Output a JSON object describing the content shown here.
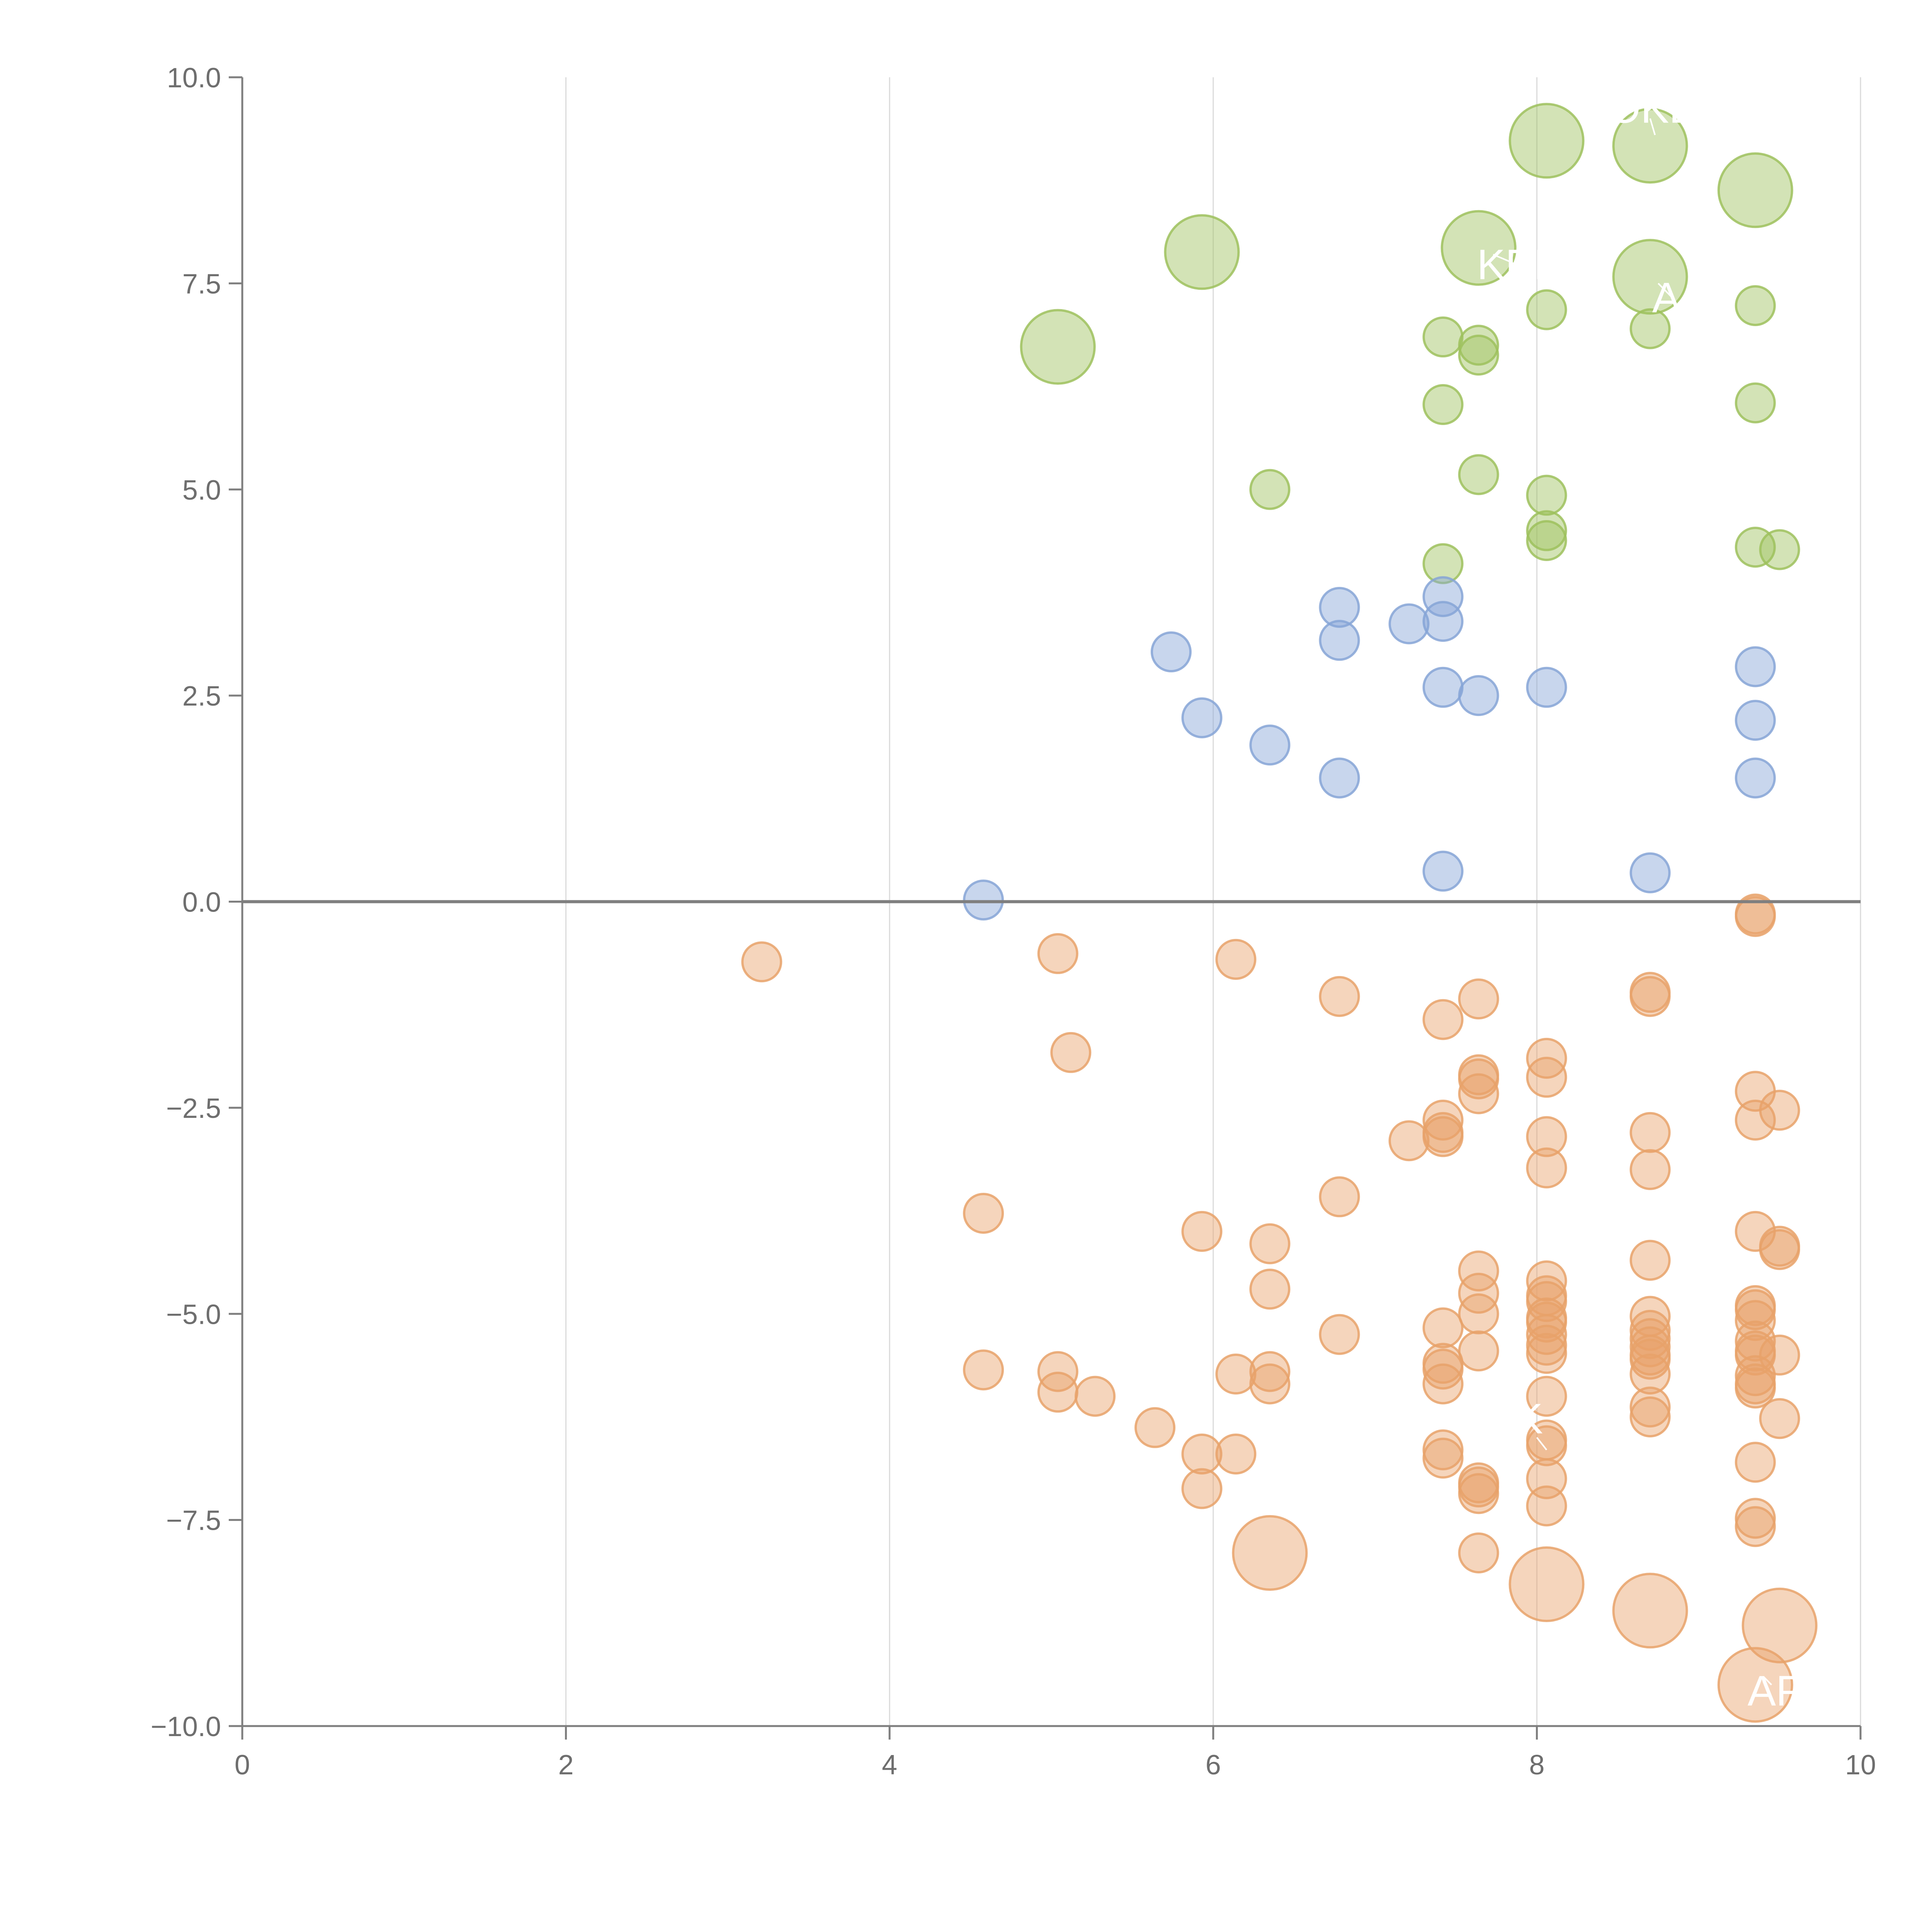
{
  "chart_data": {
    "type": "scatter",
    "title": "",
    "xlabel": "",
    "ylabel": "",
    "xlim": [
      0,
      10
    ],
    "ylim": [
      -10,
      10
    ],
    "grid": "vertical lines at x ticks",
    "reference_line": {
      "y": 0
    },
    "x_ticks": [
      "0",
      "2",
      "4",
      "6",
      "8",
      "10"
    ],
    "y_ticks": [
      "−10.0",
      "−7.5",
      "−5.0",
      "−2.5",
      "0.0",
      "2.5",
      "5.0",
      "7.5",
      "10.0"
    ],
    "x_tick_values": [
      0,
      2,
      4,
      6,
      8,
      10
    ],
    "y_tick_values": [
      -10,
      -7.5,
      -5,
      -2.5,
      0,
      2.5,
      5,
      7.5,
      10
    ],
    "series": [
      {
        "name": "green",
        "color": "#9dc15d",
        "points": [
          {
            "x": 8.06,
            "y": 9.23,
            "s": "large"
          },
          {
            "x": 8.7,
            "y": 9.17,
            "s": "large"
          },
          {
            "x": 9.35,
            "y": 8.63,
            "s": "large"
          },
          {
            "x": 5.93,
            "y": 7.88,
            "s": "large"
          },
          {
            "x": 7.64,
            "y": 7.93,
            "s": "large"
          },
          {
            "x": 8.7,
            "y": 7.58,
            "s": "large"
          },
          {
            "x": 5.04,
            "y": 6.73,
            "s": "large"
          },
          {
            "x": 8.06,
            "y": 7.18,
            "s": "small"
          },
          {
            "x": 9.35,
            "y": 7.23,
            "s": "small"
          },
          {
            "x": 7.42,
            "y": 6.85,
            "s": "small"
          },
          {
            "x": 7.64,
            "y": 6.75,
            "s": "small"
          },
          {
            "x": 7.64,
            "y": 6.63,
            "s": "small"
          },
          {
            "x": 8.7,
            "y": 6.95,
            "s": "small"
          },
          {
            "x": 7.42,
            "y": 6.03,
            "s": "small"
          },
          {
            "x": 9.35,
            "y": 6.05,
            "s": "small"
          },
          {
            "x": 7.64,
            "y": 5.18,
            "s": "small"
          },
          {
            "x": 6.35,
            "y": 5.0,
            "s": "small"
          },
          {
            "x": 8.06,
            "y": 4.93,
            "s": "small"
          },
          {
            "x": 8.06,
            "y": 4.5,
            "s": "small"
          },
          {
            "x": 8.06,
            "y": 4.38,
            "s": "small"
          },
          {
            "x": 9.35,
            "y": 4.3,
            "s": "small"
          },
          {
            "x": 9.5,
            "y": 4.27,
            "s": "small"
          },
          {
            "x": 7.42,
            "y": 4.1,
            "s": "small"
          }
        ]
      },
      {
        "name": "blue",
        "color": "#86a5d6",
        "points": [
          {
            "x": 7.42,
            "y": 3.7,
            "s": "small"
          },
          {
            "x": 6.78,
            "y": 3.57,
            "s": "small"
          },
          {
            "x": 7.42,
            "y": 3.4,
            "s": "small"
          },
          {
            "x": 7.21,
            "y": 3.37,
            "s": "small"
          },
          {
            "x": 6.78,
            "y": 3.17,
            "s": "small"
          },
          {
            "x": 5.74,
            "y": 3.03,
            "s": "small"
          },
          {
            "x": 9.35,
            "y": 2.85,
            "s": "small"
          },
          {
            "x": 7.42,
            "y": 2.6,
            "s": "small"
          },
          {
            "x": 8.06,
            "y": 2.6,
            "s": "small"
          },
          {
            "x": 7.64,
            "y": 2.5,
            "s": "small"
          },
          {
            "x": 5.93,
            "y": 2.23,
            "s": "small"
          },
          {
            "x": 9.35,
            "y": 2.2,
            "s": "small"
          },
          {
            "x": 6.35,
            "y": 1.9,
            "s": "small"
          },
          {
            "x": 6.78,
            "y": 1.5,
            "s": "small"
          },
          {
            "x": 9.35,
            "y": 1.5,
            "s": "small"
          },
          {
            "x": 7.42,
            "y": 0.37,
            "s": "small"
          },
          {
            "x": 8.7,
            "y": 0.35,
            "s": "small"
          },
          {
            "x": 4.58,
            "y": 0.02,
            "s": "small"
          }
        ]
      },
      {
        "name": "orange",
        "color": "#e8a26a",
        "points": [
          {
            "x": 9.35,
            "y": -0.15,
            "s": "small"
          },
          {
            "x": 9.35,
            "y": -0.18,
            "s": "small"
          },
          {
            "x": 3.21,
            "y": -0.73,
            "s": "small"
          },
          {
            "x": 5.04,
            "y": -0.63,
            "s": "small"
          },
          {
            "x": 6.14,
            "y": -0.7,
            "s": "small"
          },
          {
            "x": 6.78,
            "y": -1.15,
            "s": "small"
          },
          {
            "x": 7.64,
            "y": -1.18,
            "s": "small"
          },
          {
            "x": 8.7,
            "y": -1.1,
            "s": "small"
          },
          {
            "x": 8.7,
            "y": -1.15,
            "s": "small"
          },
          {
            "x": 7.42,
            "y": -1.43,
            "s": "small"
          },
          {
            "x": 5.12,
            "y": -1.83,
            "s": "small"
          },
          {
            "x": 8.06,
            "y": -1.9,
            "s": "small"
          },
          {
            "x": 7.64,
            "y": -2.1,
            "s": "small"
          },
          {
            "x": 7.64,
            "y": -2.15,
            "s": "small"
          },
          {
            "x": 8.06,
            "y": -2.13,
            "s": "small"
          },
          {
            "x": 7.64,
            "y": -2.33,
            "s": "small"
          },
          {
            "x": 9.35,
            "y": -2.3,
            "s": "small"
          },
          {
            "x": 9.5,
            "y": -2.53,
            "s": "small"
          },
          {
            "x": 9.35,
            "y": -2.65,
            "s": "small"
          },
          {
            "x": 7.42,
            "y": -2.65,
            "s": "small"
          },
          {
            "x": 7.42,
            "y": -2.8,
            "s": "small"
          },
          {
            "x": 7.42,
            "y": -2.85,
            "s": "small"
          },
          {
            "x": 8.06,
            "y": -2.85,
            "s": "small"
          },
          {
            "x": 8.7,
            "y": -2.8,
            "s": "small"
          },
          {
            "x": 7.21,
            "y": -2.9,
            "s": "small"
          },
          {
            "x": 8.06,
            "y": -3.23,
            "s": "small"
          },
          {
            "x": 8.7,
            "y": -3.25,
            "s": "small"
          },
          {
            "x": 6.78,
            "y": -3.58,
            "s": "small"
          },
          {
            "x": 4.58,
            "y": -3.78,
            "s": "small"
          },
          {
            "x": 5.93,
            "y": -4.0,
            "s": "small"
          },
          {
            "x": 9.35,
            "y": -4.0,
            "s": "small"
          },
          {
            "x": 6.35,
            "y": -4.15,
            "s": "small"
          },
          {
            "x": 9.5,
            "y": -4.18,
            "s": "small"
          },
          {
            "x": 9.5,
            "y": -4.22,
            "s": "small"
          },
          {
            "x": 8.7,
            "y": -4.35,
            "s": "small"
          },
          {
            "x": 7.64,
            "y": -4.48,
            "s": "small"
          },
          {
            "x": 8.06,
            "y": -4.6,
            "s": "small"
          },
          {
            "x": 6.35,
            "y": -4.7,
            "s": "small"
          },
          {
            "x": 7.64,
            "y": -4.75,
            "s": "small"
          },
          {
            "x": 8.06,
            "y": -4.78,
            "s": "small"
          },
          {
            "x": 8.06,
            "y": -4.85,
            "s": "small"
          },
          {
            "x": 9.35,
            "y": -4.9,
            "s": "small"
          },
          {
            "x": 9.35,
            "y": -4.95,
            "s": "small"
          },
          {
            "x": 7.64,
            "y": -5.0,
            "s": "small"
          },
          {
            "x": 8.7,
            "y": -5.03,
            "s": "small"
          },
          {
            "x": 8.06,
            "y": -5.05,
            "s": "small"
          },
          {
            "x": 9.35,
            "y": -5.08,
            "s": "small"
          },
          {
            "x": 8.06,
            "y": -5.1,
            "s": "small"
          },
          {
            "x": 7.42,
            "y": -5.17,
            "s": "small"
          },
          {
            "x": 8.7,
            "y": -5.2,
            "s": "small"
          },
          {
            "x": 6.78,
            "y": -5.25,
            "s": "small"
          },
          {
            "x": 8.06,
            "y": -5.25,
            "s": "small"
          },
          {
            "x": 8.7,
            "y": -5.3,
            "s": "small"
          },
          {
            "x": 9.35,
            "y": -5.33,
            "s": "small"
          },
          {
            "x": 8.06,
            "y": -5.38,
            "s": "small"
          },
          {
            "x": 8.7,
            "y": -5.4,
            "s": "small"
          },
          {
            "x": 9.35,
            "y": -5.45,
            "s": "small"
          },
          {
            "x": 8.06,
            "y": -5.48,
            "s": "small"
          },
          {
            "x": 7.64,
            "y": -5.45,
            "s": "small"
          },
          {
            "x": 8.7,
            "y": -5.5,
            "s": "small"
          },
          {
            "x": 9.35,
            "y": -5.5,
            "s": "small"
          },
          {
            "x": 9.5,
            "y": -5.5,
            "s": "small"
          },
          {
            "x": 8.7,
            "y": -5.55,
            "s": "small"
          },
          {
            "x": 7.42,
            "y": -5.6,
            "s": "small"
          },
          {
            "x": 4.58,
            "y": -5.68,
            "s": "small"
          },
          {
            "x": 5.04,
            "y": -5.7,
            "s": "small"
          },
          {
            "x": 7.42,
            "y": -5.67,
            "s": "small"
          },
          {
            "x": 6.35,
            "y": -5.7,
            "s": "small"
          },
          {
            "x": 6.14,
            "y": -5.73,
            "s": "small"
          },
          {
            "x": 8.7,
            "y": -5.73,
            "s": "small"
          },
          {
            "x": 9.35,
            "y": -5.75,
            "s": "small"
          },
          {
            "x": 7.42,
            "y": -5.85,
            "s": "small"
          },
          {
            "x": 6.35,
            "y": -5.85,
            "s": "small"
          },
          {
            "x": 9.35,
            "y": -5.85,
            "s": "small"
          },
          {
            "x": 9.35,
            "y": -5.9,
            "s": "small"
          },
          {
            "x": 5.04,
            "y": -5.95,
            "s": "small"
          },
          {
            "x": 5.27,
            "y": -6.0,
            "s": "small"
          },
          {
            "x": 8.06,
            "y": -6.0,
            "s": "small"
          },
          {
            "x": 8.7,
            "y": -6.13,
            "s": "small"
          },
          {
            "x": 8.7,
            "y": -6.25,
            "s": "small"
          },
          {
            "x": 9.5,
            "y": -6.27,
            "s": "small"
          },
          {
            "x": 5.64,
            "y": -6.38,
            "s": "small"
          },
          {
            "x": 8.06,
            "y": -6.53,
            "s": "small"
          },
          {
            "x": 8.06,
            "y": -6.6,
            "s": "small"
          },
          {
            "x": 7.42,
            "y": -6.65,
            "s": "small"
          },
          {
            "x": 5.93,
            "y": -6.7,
            "s": "small"
          },
          {
            "x": 6.14,
            "y": -6.7,
            "s": "small"
          },
          {
            "x": 7.42,
            "y": -6.75,
            "s": "small"
          },
          {
            "x": 9.35,
            "y": -6.8,
            "s": "small"
          },
          {
            "x": 8.06,
            "y": -7.0,
            "s": "small"
          },
          {
            "x": 7.64,
            "y": -7.05,
            "s": "small"
          },
          {
            "x": 7.64,
            "y": -7.1,
            "s": "small"
          },
          {
            "x": 5.93,
            "y": -7.12,
            "s": "small"
          },
          {
            "x": 7.64,
            "y": -7.18,
            "s": "small"
          },
          {
            "x": 8.06,
            "y": -7.33,
            "s": "small"
          },
          {
            "x": 9.35,
            "y": -7.48,
            "s": "small"
          },
          {
            "x": 9.35,
            "y": -7.58,
            "s": "small"
          },
          {
            "x": 7.64,
            "y": -7.9,
            "s": "small"
          },
          {
            "x": 6.35,
            "y": -7.9,
            "s": "large"
          },
          {
            "x": 8.06,
            "y": -8.28,
            "s": "large"
          },
          {
            "x": 8.7,
            "y": -8.6,
            "s": "large"
          },
          {
            "x": 9.5,
            "y": -8.78,
            "s": "large"
          },
          {
            "x": 9.35,
            "y": -9.5,
            "s": "large"
          }
        ]
      }
    ],
    "annotations": [
      {
        "text": "OKL",
        "x": 8.7,
        "y": 9.45,
        "lx1": 8.73,
        "ly1": 9.3,
        "lx2": 8.7,
        "ly2": 9.5
      },
      {
        "text": "KEN",
        "x": 7.9,
        "y": 7.55,
        "lx1": 7.73,
        "ly1": 7.85,
        "lx2": 7.85,
        "ly2": 7.75
      },
      {
        "text": "A",
        "x": 8.8,
        "y": 7.15,
        "lx1": 8.75,
        "ly1": 7.5,
        "lx2": 8.85,
        "ly2": 7.3
      },
      {
        "text": "K",
        "x": 7.95,
        "y": -6.45,
        "lx1": 8.0,
        "ly1": -6.5,
        "lx2": 8.06,
        "ly2": -6.65
      },
      {
        "text": "APL",
        "x": 9.55,
        "y": -9.75,
        "lx1": 9.4,
        "ly1": -9.4,
        "lx2": 9.45,
        "ly2": -9.5
      }
    ]
  }
}
